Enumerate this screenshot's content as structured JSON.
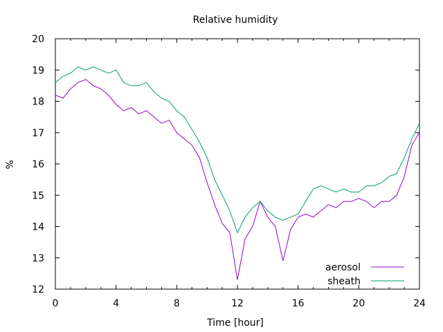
{
  "chart_data": {
    "type": "line",
    "title": "Relative humidity",
    "xlabel": "Time [hour]",
    "ylabel": "%",
    "xlim": [
      0,
      24
    ],
    "ylim": [
      12,
      20
    ],
    "xticks": [
      0,
      4,
      8,
      12,
      16,
      20,
      24
    ],
    "yticks": [
      12,
      13,
      14,
      15,
      16,
      17,
      18,
      19,
      20
    ],
    "grid": false,
    "legend_position": "bottom-right",
    "x": [
      0,
      0.5,
      1,
      1.5,
      2,
      2.5,
      3,
      3.5,
      4,
      4.5,
      5,
      5.5,
      6,
      6.5,
      7,
      7.5,
      8,
      8.5,
      9,
      9.5,
      10,
      10.5,
      11,
      11.5,
      12,
      12.5,
      13,
      13.5,
      14,
      14.5,
      15,
      15.5,
      16,
      16.5,
      17,
      17.5,
      18,
      18.5,
      19,
      19.5,
      20,
      20.5,
      21,
      21.5,
      22,
      22.5,
      23,
      23.5,
      24
    ],
    "series": [
      {
        "name": "aerosol",
        "color": "#9400d3",
        "values": [
          18.2,
          18.1,
          18.4,
          18.6,
          18.7,
          18.5,
          18.4,
          18.2,
          17.9,
          17.7,
          17.8,
          17.6,
          17.7,
          17.5,
          17.3,
          17.4,
          17.0,
          16.8,
          16.6,
          16.2,
          15.4,
          14.7,
          14.1,
          13.8,
          12.3,
          13.6,
          14.0,
          14.8,
          14.3,
          14.0,
          12.9,
          13.9,
          14.3,
          14.4,
          14.3,
          14.5,
          14.7,
          14.6,
          14.8,
          14.8,
          14.9,
          14.8,
          14.6,
          14.8,
          14.8,
          15.0,
          15.6,
          16.6,
          17.0
        ]
      },
      {
        "name": "sheath",
        "color": "#009e73",
        "values": [
          18.6,
          18.8,
          18.9,
          19.1,
          19.0,
          19.1,
          19.0,
          18.9,
          19.0,
          18.6,
          18.5,
          18.5,
          18.6,
          18.3,
          18.1,
          18.0,
          17.7,
          17.5,
          17.1,
          16.7,
          16.2,
          15.5,
          15.0,
          14.5,
          13.8,
          14.3,
          14.6,
          14.8,
          14.5,
          14.3,
          14.2,
          14.3,
          14.4,
          14.8,
          15.2,
          15.3,
          15.2,
          15.1,
          15.2,
          15.1,
          15.1,
          15.3,
          15.3,
          15.4,
          15.6,
          15.7,
          16.2,
          16.8,
          17.3
        ]
      }
    ]
  }
}
